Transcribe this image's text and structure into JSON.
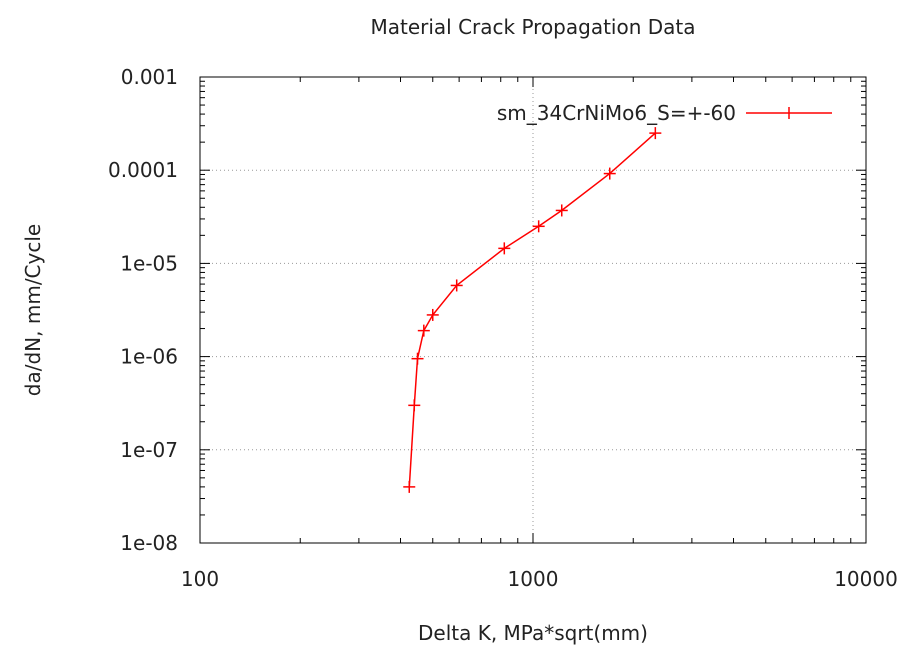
{
  "chart_data": {
    "type": "line",
    "title": "Material Crack Propagation Data",
    "xlabel": "Delta K,  MPa*sqrt(mm)",
    "ylabel": "da/dN,  mm/Cycle",
    "xscale": "log",
    "yscale": "log",
    "xlim": [
      100,
      10000
    ],
    "ylim": [
      1e-08,
      0.001
    ],
    "x_ticks": [
      100,
      1000,
      10000
    ],
    "x_tick_labels": [
      "100",
      "1000",
      "10000"
    ],
    "y_ticks": [
      1e-08,
      1e-07,
      1e-06,
      1e-05,
      0.0001,
      0.001
    ],
    "y_tick_labels": [
      "1e-08",
      "1e-07",
      "1e-06",
      "1e-05",
      "0.0001",
      "0.001"
    ],
    "grid": true,
    "legend_position": "top-right",
    "series": [
      {
        "name": "sm_34CrNiMo6_S=+-60",
        "color": "#ff0000",
        "marker": "plus",
        "x": [
          425,
          440,
          450,
          470,
          500,
          590,
          820,
          1040,
          1220,
          1700,
          2330
        ],
        "y": [
          4e-08,
          3e-07,
          9.5e-07,
          1.9e-06,
          2.8e-06,
          5.8e-06,
          1.45e-05,
          2.5e-05,
          3.7e-05,
          9.2e-05,
          0.00025
        ]
      }
    ]
  }
}
